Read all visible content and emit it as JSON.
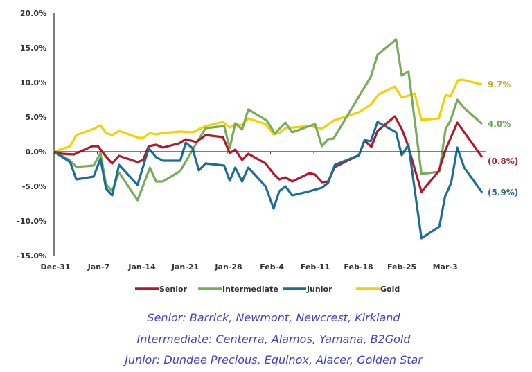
{
  "chart_data": {
    "type": "line",
    "title": "",
    "xlabel": "",
    "ylabel": "",
    "x_unit": "days since Dec-31",
    "xlim": [
      0,
      70
    ],
    "ylim": [
      -15,
      20
    ],
    "yticks": [
      20,
      15,
      10,
      5,
      0,
      -5,
      -10,
      -15
    ],
    "ytick_labels": [
      "20.0%",
      "15.0%",
      "10.0%",
      "5.0%",
      "0.0%",
      "-5.0%",
      "-10.0%",
      "-15.0%"
    ],
    "xticks": [
      0,
      7,
      14,
      21,
      28,
      35,
      42,
      49,
      56,
      63
    ],
    "xtick_labels": [
      "Dec-31",
      "Jan-7",
      "Jan-14",
      "Jan-21",
      "Jan-28",
      "Feb-4",
      "Feb-11",
      "Feb-18",
      "Feb-25",
      "Mar-3"
    ],
    "grid": false,
    "legend_position": "bottom",
    "series": [
      {
        "name": "Senior",
        "color": "#b5162b",
        "label_color": "#a32a37",
        "end_label": "(0.8%)",
        "points": [
          [
            0,
            0
          ],
          [
            1.3,
            -0.3
          ],
          [
            3.2,
            -0.4
          ],
          [
            6.2,
            0.8
          ],
          [
            7.1,
            0.8
          ],
          [
            8.4,
            -0.7
          ],
          [
            9.4,
            -1.7
          ],
          [
            10.5,
            -0.6
          ],
          [
            13.5,
            -1.5
          ],
          [
            14.4,
            -1.2
          ],
          [
            15.3,
            0.8
          ],
          [
            16.5,
            1.0
          ],
          [
            17.6,
            0.6
          ],
          [
            20.2,
            1.2
          ],
          [
            21.3,
            1.8
          ],
          [
            23.0,
            1.4
          ],
          [
            24.5,
            2.4
          ],
          [
            27.3,
            2.1
          ],
          [
            28.4,
            -0.2
          ],
          [
            29.3,
            0.3
          ],
          [
            30.4,
            -1.2
          ],
          [
            31.4,
            -0.3
          ],
          [
            34.2,
            -1.7
          ],
          [
            35.5,
            -3.2
          ],
          [
            36.4,
            -4.0
          ],
          [
            37.4,
            -3.7
          ],
          [
            38.5,
            -4.3
          ],
          [
            41.3,
            -3.1
          ],
          [
            42.2,
            -3.3
          ],
          [
            43.3,
            -4.4
          ],
          [
            44.3,
            -4.3
          ],
          [
            45.4,
            -2.2
          ],
          [
            49.3,
            -0.5
          ],
          [
            50.2,
            1.6
          ],
          [
            51.3,
            0.7
          ],
          [
            52.3,
            3.0
          ],
          [
            55.1,
            5.1
          ],
          [
            56.2,
            3.3
          ],
          [
            57.1,
            1.2
          ],
          [
            59.4,
            -5.8
          ],
          [
            62.2,
            -2.8
          ],
          [
            63.3,
            0.3
          ],
          [
            65.2,
            4.2
          ],
          [
            69.2,
            -0.8
          ]
        ]
      },
      {
        "name": "Intermediate",
        "color": "#77ac5a",
        "label_color": "#6fa352",
        "end_label": "4.0%",
        "points": [
          [
            0,
            0
          ],
          [
            2.5,
            -1.2
          ],
          [
            3.6,
            -2.2
          ],
          [
            6.4,
            -2.0
          ],
          [
            7.5,
            -0.2
          ],
          [
            8.4,
            -4.7
          ],
          [
            9.4,
            -5.7
          ],
          [
            10.5,
            -3.0
          ],
          [
            13.5,
            -7.0
          ],
          [
            15.5,
            -2.3
          ],
          [
            16.5,
            -4.3
          ],
          [
            17.6,
            -4.3
          ],
          [
            20.4,
            -2.8
          ],
          [
            23.0,
            1.2
          ],
          [
            24.5,
            3.4
          ],
          [
            27.5,
            3.7
          ],
          [
            28.4,
            0.5
          ],
          [
            29.3,
            4.1
          ],
          [
            30.4,
            3.2
          ],
          [
            31.4,
            6.1
          ],
          [
            34.4,
            4.5
          ],
          [
            35.7,
            2.6
          ],
          [
            37.4,
            4.2
          ],
          [
            38.5,
            2.8
          ],
          [
            42.2,
            4.0
          ],
          [
            43.3,
            0.8
          ],
          [
            44.3,
            1.8
          ],
          [
            45.2,
            1.9
          ],
          [
            49.3,
            8.0
          ],
          [
            51.2,
            10.8
          ],
          [
            52.3,
            14.0
          ],
          [
            55.3,
            16.2
          ],
          [
            56.2,
            11.0
          ],
          [
            57.3,
            11.6
          ],
          [
            59.4,
            -3.2
          ],
          [
            62.3,
            -2.9
          ],
          [
            63.3,
            3.3
          ],
          [
            64.1,
            4.5
          ],
          [
            65.2,
            7.5
          ],
          [
            66.3,
            6.3
          ],
          [
            69.2,
            4.0
          ]
        ]
      },
      {
        "name": "Junior",
        "color": "#1a6e94",
        "label_color": "#2f6b8a",
        "end_label": "(5.9%)",
        "points": [
          [
            0,
            0
          ],
          [
            2.6,
            -1.5
          ],
          [
            3.6,
            -4.0
          ],
          [
            6.4,
            -3.6
          ],
          [
            7.5,
            -1.0
          ],
          [
            8.4,
            -5.3
          ],
          [
            9.4,
            -6.3
          ],
          [
            10.5,
            -1.9
          ],
          [
            13.5,
            -4.8
          ],
          [
            15.3,
            0.5
          ],
          [
            16.5,
            -0.8
          ],
          [
            17.6,
            -1.3
          ],
          [
            20.4,
            -1.3
          ],
          [
            21.3,
            1.3
          ],
          [
            22.4,
            0.5
          ],
          [
            23.4,
            -2.7
          ],
          [
            24.5,
            -1.7
          ],
          [
            27.5,
            -2.0
          ],
          [
            28.4,
            -4.2
          ],
          [
            29.3,
            -2.3
          ],
          [
            30.4,
            -4.3
          ],
          [
            31.4,
            -2.3
          ],
          [
            34.2,
            -5.0
          ],
          [
            35.5,
            -8.2
          ],
          [
            36.4,
            -5.7
          ],
          [
            37.4,
            -5.0
          ],
          [
            38.5,
            -6.3
          ],
          [
            40.9,
            -5.8
          ],
          [
            43.3,
            -5.2
          ],
          [
            44.3,
            -4.5
          ],
          [
            45.4,
            -1.9
          ],
          [
            49.3,
            -0.5
          ],
          [
            50.2,
            1.7
          ],
          [
            51.2,
            1.5
          ],
          [
            52.3,
            4.3
          ],
          [
            55.3,
            2.8
          ],
          [
            56.2,
            -0.5
          ],
          [
            57.3,
            1.0
          ],
          [
            59.4,
            -12.5
          ],
          [
            62.3,
            -10.8
          ],
          [
            63.2,
            -6.5
          ],
          [
            64.2,
            -4.5
          ],
          [
            65.2,
            0.6
          ],
          [
            66.3,
            -2.3
          ],
          [
            69.2,
            -5.9
          ]
        ]
      },
      {
        "name": "Gold",
        "color": "#f2d200",
        "label_color": "#c9ad3c",
        "end_label": "9.7%",
        "points": [
          [
            0,
            0
          ],
          [
            2.6,
            0.8
          ],
          [
            3.6,
            2.4
          ],
          [
            6.4,
            3.3
          ],
          [
            7.5,
            3.8
          ],
          [
            8.4,
            2.7
          ],
          [
            9.4,
            2.4
          ],
          [
            10.5,
            3.0
          ],
          [
            13.7,
            2.0
          ],
          [
            14.4,
            2.0
          ],
          [
            15.5,
            2.7
          ],
          [
            16.5,
            2.5
          ],
          [
            17.6,
            2.7
          ],
          [
            20.4,
            2.9
          ],
          [
            22.4,
            2.8
          ],
          [
            24.5,
            3.7
          ],
          [
            27.3,
            4.3
          ],
          [
            28.4,
            3.5
          ],
          [
            29.3,
            4.0
          ],
          [
            30.3,
            3.8
          ],
          [
            31.4,
            4.8
          ],
          [
            34.2,
            4.0
          ],
          [
            35.5,
            2.5
          ],
          [
            36.4,
            2.7
          ],
          [
            37.4,
            3.4
          ],
          [
            41.3,
            3.7
          ],
          [
            43.3,
            3.3
          ],
          [
            45.2,
            4.5
          ],
          [
            49.3,
            5.7
          ],
          [
            51.2,
            6.8
          ],
          [
            52.5,
            8.3
          ],
          [
            55.1,
            9.4
          ],
          [
            56.2,
            7.8
          ],
          [
            58.3,
            8.4
          ],
          [
            59.4,
            4.6
          ],
          [
            62.2,
            4.8
          ],
          [
            63.3,
            8.2
          ],
          [
            64.1,
            8.0
          ],
          [
            65.3,
            10.3
          ],
          [
            66.0,
            10.4
          ],
          [
            69.2,
            9.7
          ]
        ]
      }
    ]
  },
  "captions": [
    "Senior: Barrick, Newmont, Newcrest, Kirkland",
    "Intermediate: Centerra, Alamos, Yamana, B2Gold",
    "Junior: Dundee Precious, Equinox, Alacer, Golden Star"
  ]
}
